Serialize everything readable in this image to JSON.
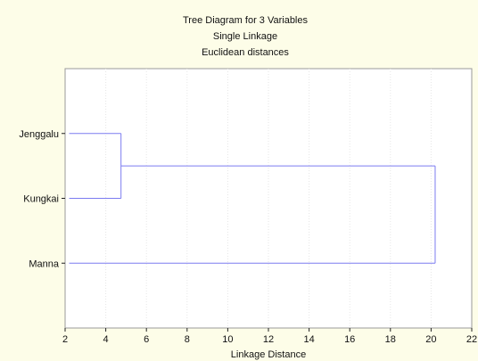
{
  "chart_data": {
    "type": "dendrogram",
    "title": [
      "Tree Diagram for 3   Variables",
      "Single Linkage",
      "Euclidean distances"
    ],
    "xlabel": "Linkage Distance",
    "ylabel": "",
    "xlim": [
      2,
      22
    ],
    "xticks": [
      2,
      4,
      6,
      8,
      10,
      12,
      14,
      16,
      18,
      20,
      22
    ],
    "grid": true,
    "orientation": "horizontal",
    "leaves": [
      "Jenggalu",
      "Kungkai",
      "Manna"
    ],
    "leaf_base_distance": 2.2,
    "merges": [
      {
        "members": [
          "Jenggalu",
          "Kungkai"
        ],
        "distance": 4.75
      },
      {
        "members": [
          "Jenggalu",
          "Kungkai",
          "Manna"
        ],
        "distance": 20.2
      }
    ]
  },
  "colors": {
    "background": "#fdfde8",
    "plot_background": "#ffffff",
    "tree_line": "#7b7bf0",
    "grid": "#e6e6e6"
  }
}
